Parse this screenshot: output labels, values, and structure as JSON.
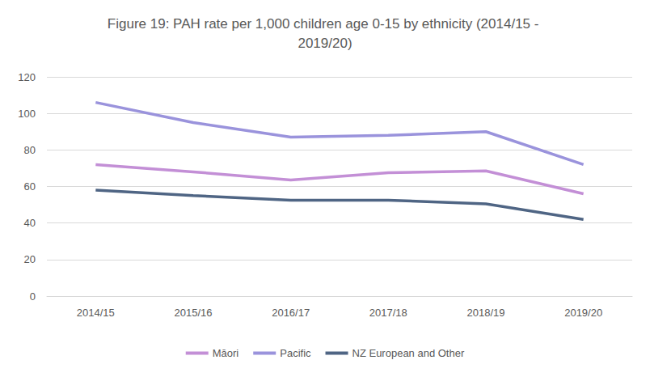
{
  "chart_data": {
    "type": "line",
    "title": "Figure 19: PAH rate per 1,000 children age 0-15 by ethnicity (2014/15 - 2019/20)",
    "categories": [
      "2014/15",
      "2015/16",
      "2016/17",
      "2017/18",
      "2018/19",
      "2019/20"
    ],
    "series": [
      {
        "name": "Māori",
        "color": "#c38fd6",
        "values": [
          72,
          68,
          63.5,
          67.5,
          68.5,
          56
        ]
      },
      {
        "name": "Pacific",
        "color": "#9a93dc",
        "values": [
          106,
          95,
          87,
          88,
          90,
          72
        ]
      },
      {
        "name": "NZ European and Other",
        "color": "#4f6584",
        "values": [
          58,
          55,
          52.5,
          52.5,
          50.5,
          42
        ]
      }
    ],
    "ylim": [
      0,
      120
    ],
    "yticks": [
      0,
      20,
      40,
      60,
      80,
      100,
      120
    ],
    "grid": true,
    "legend": "bottom",
    "marker": "none"
  }
}
